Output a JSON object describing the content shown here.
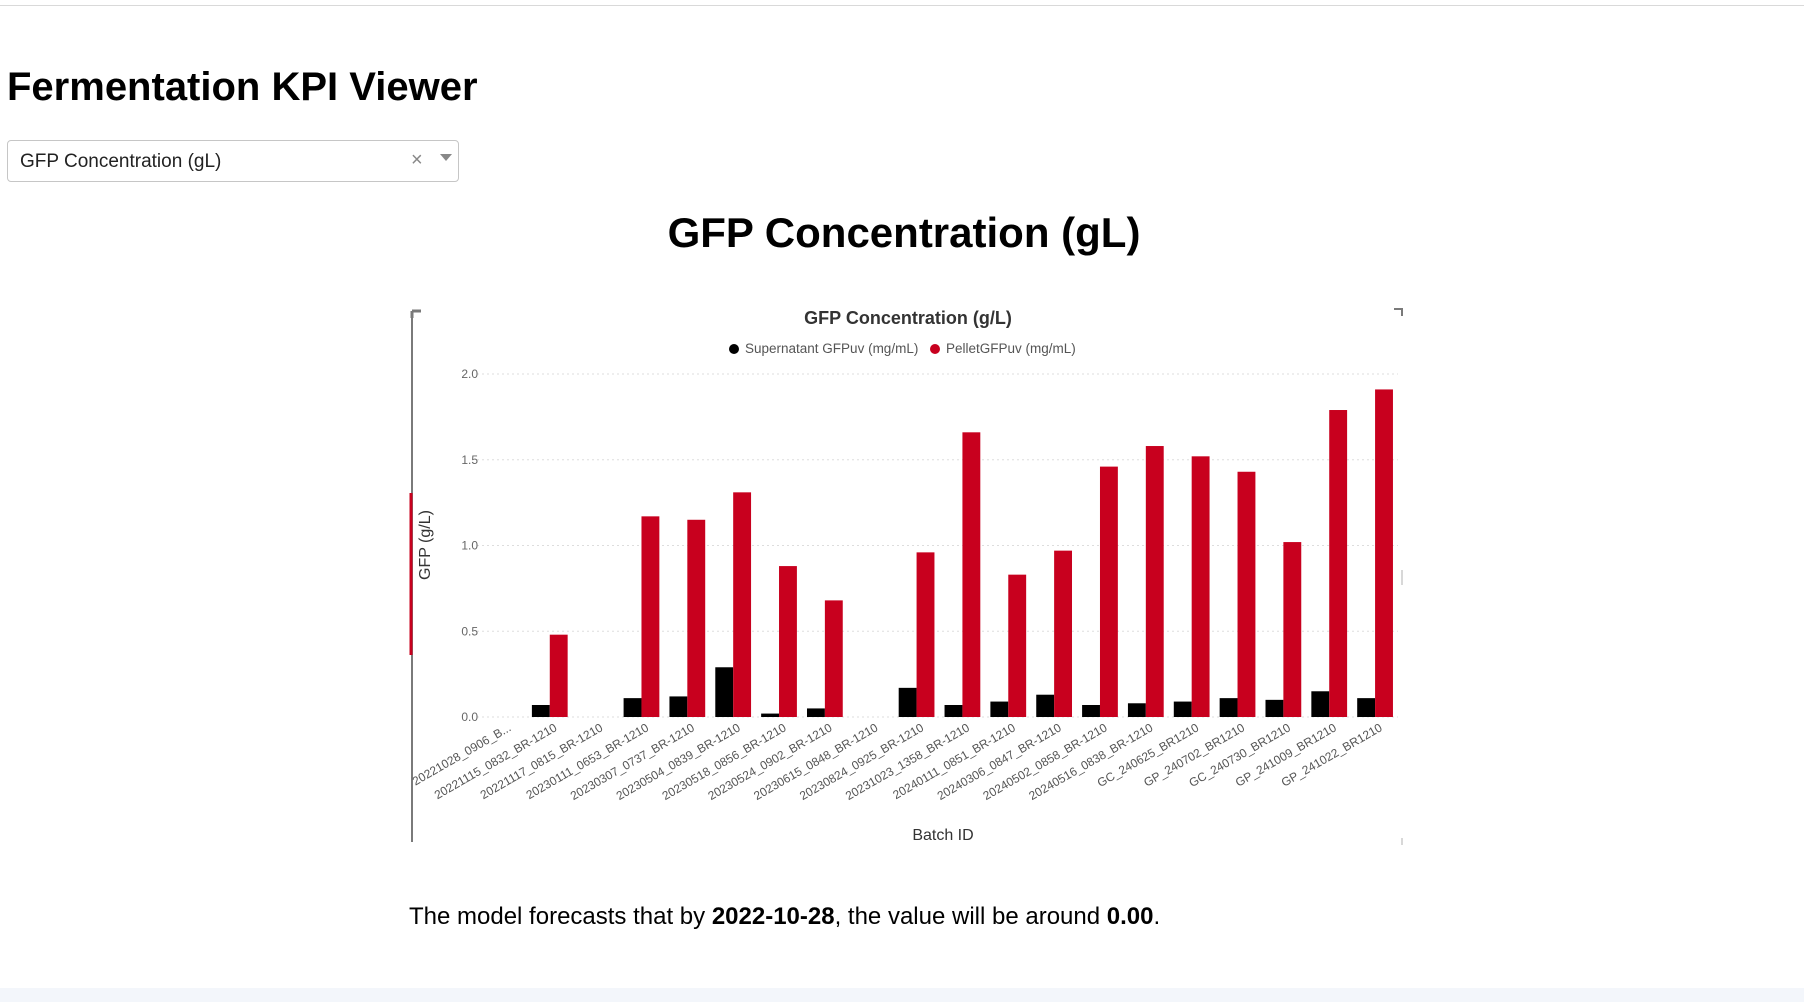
{
  "app": {
    "title": "Fermentation KPI Viewer"
  },
  "kpi_select": {
    "value": "GFP Concentration (gL)",
    "clear_symbol": "×"
  },
  "section": {
    "title": "GFP Concentration (gL)"
  },
  "chart_data": {
    "type": "bar",
    "title": "GFP Concentration (g/L)",
    "xlabel": "Batch ID",
    "ylabel": "GFP (g/L)",
    "ylim": [
      0,
      2.0
    ],
    "yticks": [
      "0.0",
      "0.5",
      "1.0",
      "1.5",
      "2.0"
    ],
    "grid": true,
    "legend_position": "top",
    "categories": [
      "20221028_0906_B...",
      "20221115_0832_BR-1210",
      "20221117_0815_BR-1210",
      "20230111_0653_BR-1210",
      "20230307_0737_BR-1210",
      "20230504_0839_BR-1210",
      "20230518_0856_BR-1210",
      "20230524_0902_BR-1210",
      "20230615_0848_BR-1210",
      "20230824_0925_BR-1210",
      "20231023_1358_BR-1210",
      "20240111_0851_BR-1210",
      "20240306_0847_BR-1210",
      "20240502_0858_BR-1210",
      "20240516_0838_BR-1210",
      "GC_240625_BR1210",
      "GP_240702_BR1210",
      "GC_240730_BR1210",
      "GP_241009_BR1210",
      "GP_241022_BR1210"
    ],
    "series": [
      {
        "name": "Supernatant GFPuv (mg/mL)",
        "color": "#000000",
        "values": [
          0,
          0.07,
          0,
          0.11,
          0.12,
          0.29,
          0.02,
          0.05,
          0,
          0.17,
          0.07,
          0.09,
          0.13,
          0.07,
          0.08,
          0.09,
          0.11,
          0.1,
          0.15,
          0.11
        ]
      },
      {
        "name": "PelletGFPuv  (mg/mL)",
        "color": "#c8001e",
        "values": [
          0,
          0.48,
          0,
          1.17,
          1.15,
          1.31,
          0.88,
          0.68,
          0,
          0.96,
          1.66,
          0.83,
          0.97,
          1.46,
          1.58,
          1.52,
          1.43,
          1.02,
          1.79,
          1.91
        ]
      }
    ]
  },
  "forecast": {
    "prefix": "The model forecasts that by ",
    "date": "2022-10-28",
    "middle": ", the value will be around ",
    "value": "0.00",
    "suffix": "."
  }
}
